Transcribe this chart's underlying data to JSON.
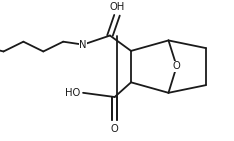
{
  "bg_color": "#ffffff",
  "line_color": "#1a1a1a",
  "line_width": 1.3,
  "font_size": 7.2,
  "xlim": [
    -0.12,
    0.88
  ],
  "ylim": [
    0.0,
    1.0
  ]
}
